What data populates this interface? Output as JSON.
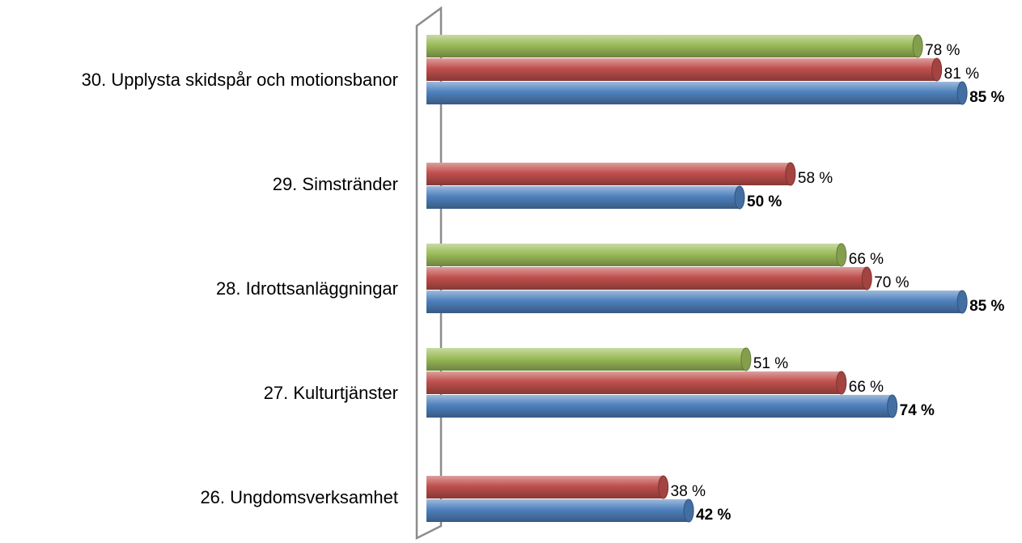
{
  "chart_data": {
    "type": "bar",
    "orientation": "horizontal",
    "categories": [
      "30. Upplysta skidspår och motionsbanor",
      "29. Simstränder",
      "28. Idrottsanläggningar",
      "27. Kulturtjänster",
      "26. Ungdomsverksamhet"
    ],
    "series": [
      {
        "color": "#9bbb59",
        "values": [
          78,
          null,
          66,
          51,
          null
        ],
        "value_labels": [
          "78 %",
          null,
          "66 %",
          "51 %",
          null
        ],
        "label_bold": false
      },
      {
        "color": "#c0504d",
        "values": [
          81,
          58,
          70,
          66,
          38
        ],
        "value_labels": [
          "81 %",
          "58 %",
          "70 %",
          "66 %",
          "38 %"
        ],
        "label_bold": false
      },
      {
        "color": "#4f81bd",
        "values": [
          85,
          50,
          85,
          74,
          42
        ],
        "value_labels": [
          "85 %",
          "50 %",
          "85 %",
          "74 %",
          "42 %"
        ],
        "label_bold": true
      }
    ]
  }
}
